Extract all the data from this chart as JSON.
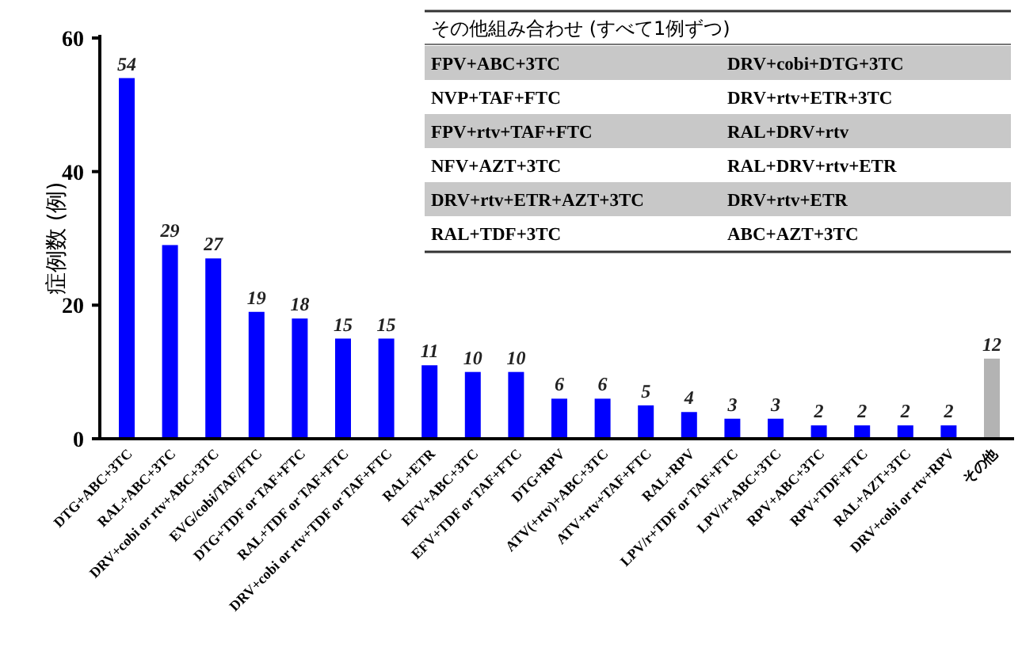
{
  "chart_data": {
    "type": "bar",
    "ylabel": "症例数 (例)",
    "categories": [
      "DTG+ABC+3TC",
      "RAL+ABC+3TC",
      "DRV+cobi or rtv+ABC+3TC",
      "EVG/cobi/TAF/FTC",
      "DTG+TDF or TAF+FTC",
      "RAL+TDF or TAF+FTC",
      "DRV+cobi or rtv+TDF or TAF+FTC",
      "RAL+ETR",
      "EFV+ABC+3TC",
      "EFV+TDF or TAF+FTC",
      "DTG+RPV",
      "ATV(+rtv)+ABC+3TC",
      "ATV+rtv+TAF+FTC",
      "RAL+RPV",
      "LPV/r+TDF or TAF+FTC",
      "LPV/r+ABC+3TC",
      "RPV+ABC+3TC",
      "RPV+TDF+FTC",
      "RAL+AZT+3TC",
      "DRV+cobi or rtv+RPV",
      "その他"
    ],
    "values": [
      54,
      29,
      27,
      19,
      18,
      15,
      15,
      11,
      10,
      10,
      6,
      6,
      5,
      4,
      3,
      3,
      2,
      2,
      2,
      2,
      12
    ],
    "colors": [
      "#0000ff",
      "#0000ff",
      "#0000ff",
      "#0000ff",
      "#0000ff",
      "#0000ff",
      "#0000ff",
      "#0000ff",
      "#0000ff",
      "#0000ff",
      "#0000ff",
      "#0000ff",
      "#0000ff",
      "#0000ff",
      "#0000ff",
      "#0000ff",
      "#0000ff",
      "#0000ff",
      "#0000ff",
      "#0000ff",
      "#b3b3b3"
    ],
    "data_labels": true,
    "ylim": [
      0,
      60
    ],
    "yticks": [
      0,
      20,
      40,
      60
    ],
    "grid": false,
    "annotations": [
      "その他組み合わせ (すべて1例ずつ)",
      "FPV+ABC+3TC",
      "DRV+cobi+DTG+3TC",
      "NVP+TAF+FTC",
      "DRV+rtv+ETR+3TC",
      "FPV+rtv+TAF+FTC",
      "RAL+DRV+rtv",
      "NFV+AZT+3TC",
      "RAL+DRV+rtv+ETR",
      "DRV+rtv+ETR+AZT+3TC",
      "DRV+rtv+ETR",
      "RAL+TDF+3TC",
      "ABC+AZT+3TC"
    ]
  }
}
